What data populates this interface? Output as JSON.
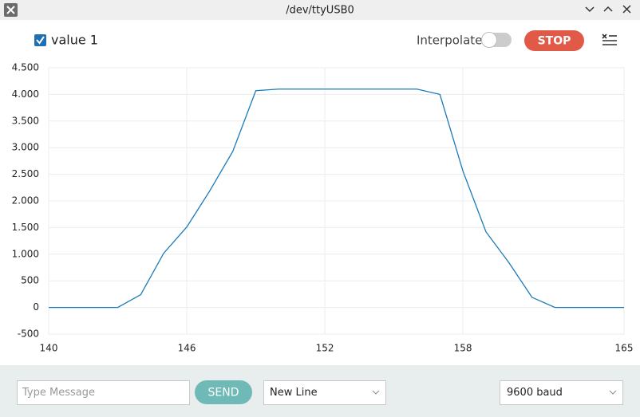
{
  "window": {
    "title": "/dev/ttyUSB0"
  },
  "toolbar": {
    "interpolate_label": "Interpolate",
    "stop_button": "STOP"
  },
  "chart_data": {
    "type": "line",
    "x": [
      140,
      141,
      142,
      143,
      144,
      145,
      146,
      147,
      148,
      149,
      150,
      151,
      152,
      153,
      154,
      155,
      156,
      157,
      158,
      159,
      160,
      161,
      162,
      163,
      164,
      165
    ],
    "series": [
      {
        "name": "value 1",
        "color": "#1a7ab8",
        "values": [
          0,
          0,
          0,
          0,
          240,
          1020,
          1510,
          2190,
          2930,
          4070,
          4100,
          4100,
          4100,
          4100,
          4100,
          4100,
          4100,
          4000,
          2560,
          1420,
          840,
          190,
          0,
          0,
          0,
          0
        ]
      }
    ],
    "xlim": [
      140,
      165
    ],
    "xticks": [
      140,
      146,
      152,
      158,
      165
    ],
    "ylim": [
      -500,
      4500
    ],
    "yticks": [
      -500,
      0,
      500,
      {
        "value": 1000,
        "label": "1.000"
      },
      {
        "value": 1500,
        "label": "1.500"
      },
      {
        "value": 2000,
        "label": "2.000"
      },
      {
        "value": 2500,
        "label": "2.500"
      },
      {
        "value": 3000,
        "label": "3.000"
      },
      {
        "value": 3500,
        "label": "3.500"
      },
      {
        "value": 4000,
        "label": "4.000"
      },
      {
        "value": 4500,
        "label": "4.500"
      }
    ],
    "grid": true
  },
  "footer": {
    "message_placeholder": "Type Message",
    "send_button": "SEND",
    "line_ending": "New Line",
    "baud_rate": "9600 baud"
  }
}
